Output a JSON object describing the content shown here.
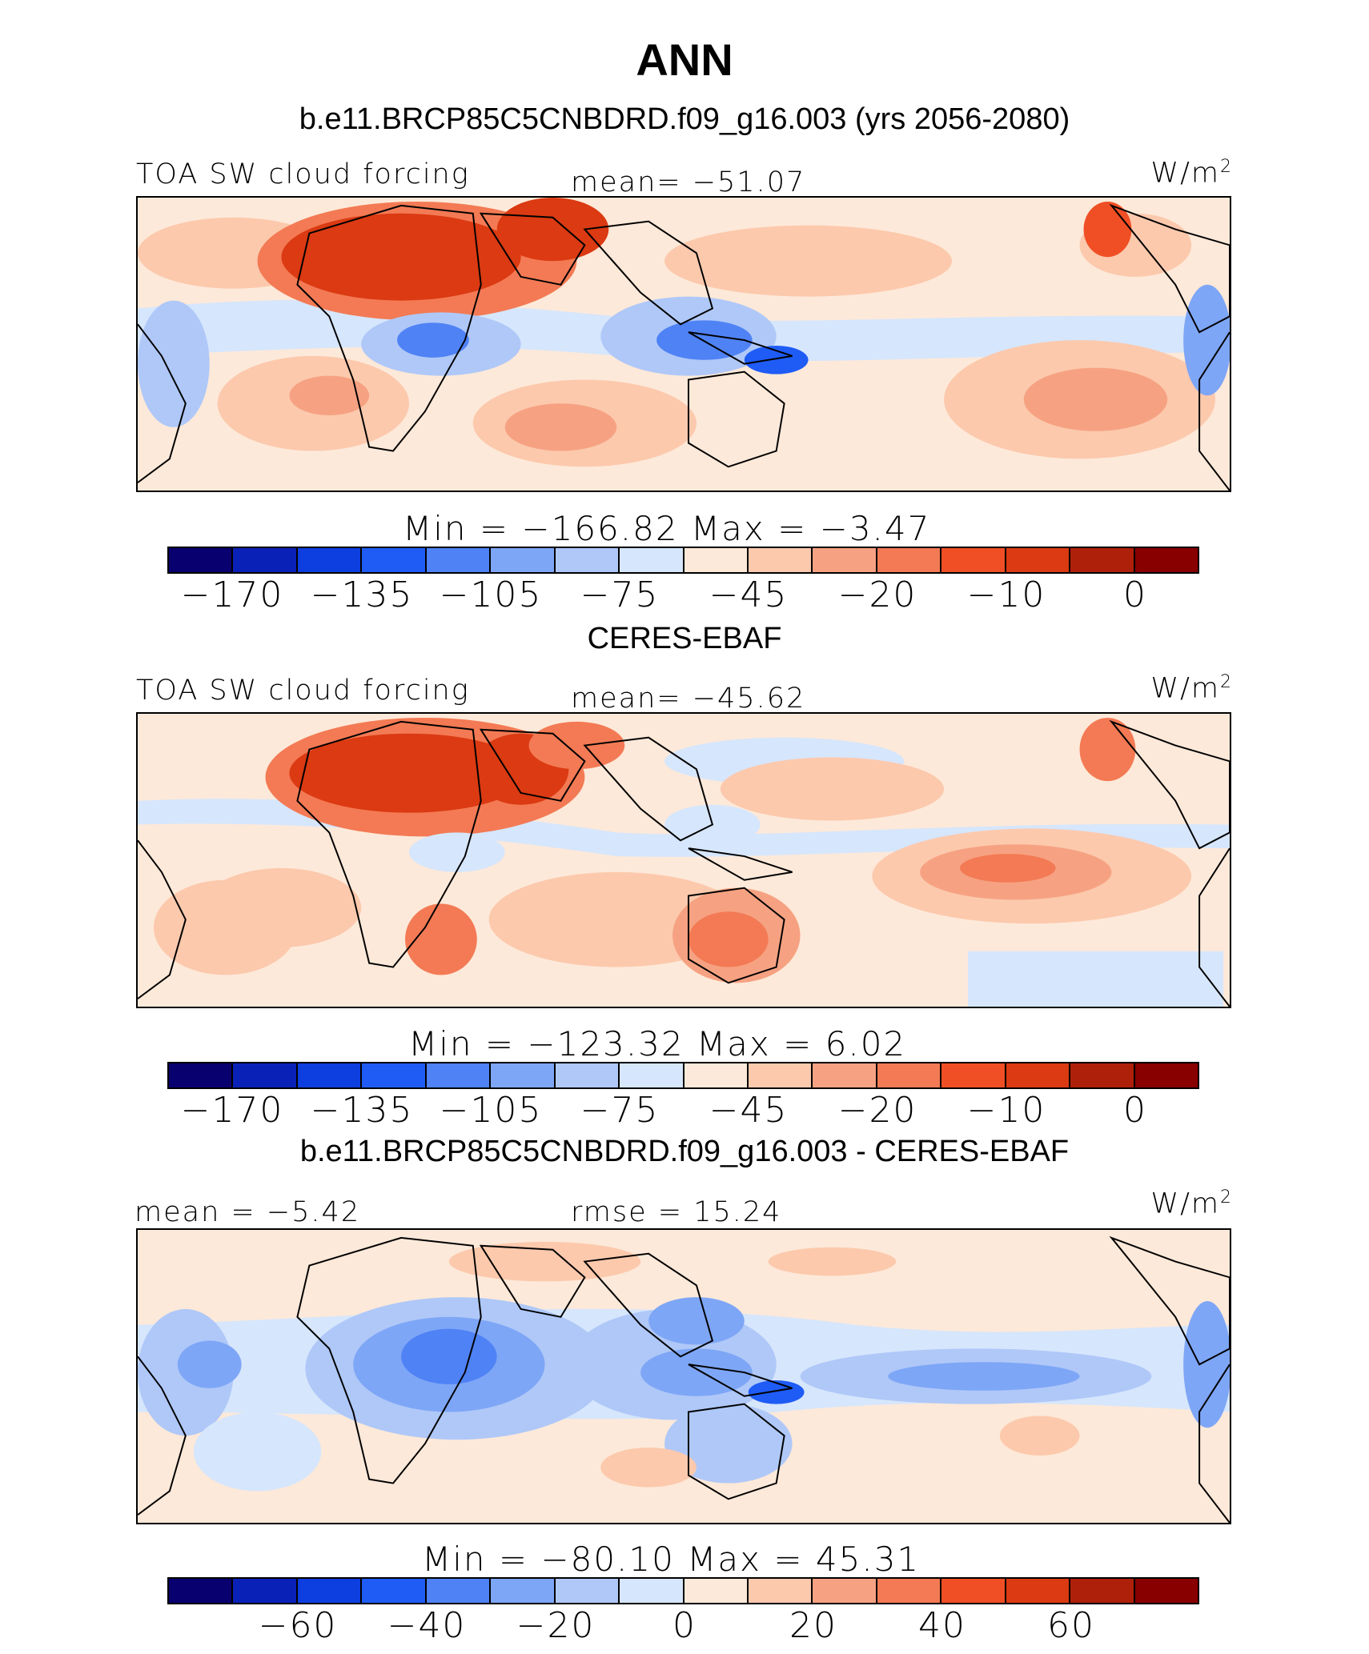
{
  "title": "ANN",
  "colors": {
    "scale": [
      "#08006e",
      "#0a21b8",
      "#0d3ee0",
      "#1f5cf6",
      "#4f82f5",
      "#7ea6f6",
      "#afc8f8",
      "#d6e6fc",
      "#fde9d9",
      "#fcc9ad",
      "#f6a282",
      "#f37a54",
      "#f04f25",
      "#db3a12",
      "#ae200a",
      "#880000"
    ]
  },
  "panels": [
    {
      "subtitle": "b.e11.BRCP85C5CNBDRD.f09_g16.003 (yrs 2056-2080)",
      "left_label": "TOA SW cloud forcing",
      "center_label": "mean=  −51.07",
      "units": "W/m",
      "units_sup": "2",
      "minmax": "Min  =  −166.82  Max  =    −3.47",
      "ticks": [
        "−170",
        "−135",
        "−105",
        "−75",
        "−45",
        "−20",
        "−10",
        "0"
      ],
      "map_desc": "model"
    },
    {
      "subtitle": "CERES-EBAF",
      "left_label": "TOA SW cloud forcing",
      "center_label": "mean=  −45.62",
      "units": "W/m",
      "units_sup": "2",
      "minmax": "Min  =  −123.32  Max  =     6.02",
      "ticks": [
        "−170",
        "−135",
        "−105",
        "−75",
        "−45",
        "−20",
        "−10",
        "0"
      ],
      "map_desc": "obs"
    },
    {
      "subtitle": "b.e11.BRCP85C5CNBDRD.f09_g16.003 - CERES-EBAF",
      "left_label": "mean  =   −5.42",
      "center_label": "rmse  =   15.24",
      "units": "W/m",
      "units_sup": "2",
      "minmax": "Min  =  −80.10  Max  =   45.31",
      "ticks": [
        "−60",
        "−40",
        "−20",
        "0",
        "20",
        "40",
        "60"
      ],
      "map_desc": "diff"
    }
  ]
}
